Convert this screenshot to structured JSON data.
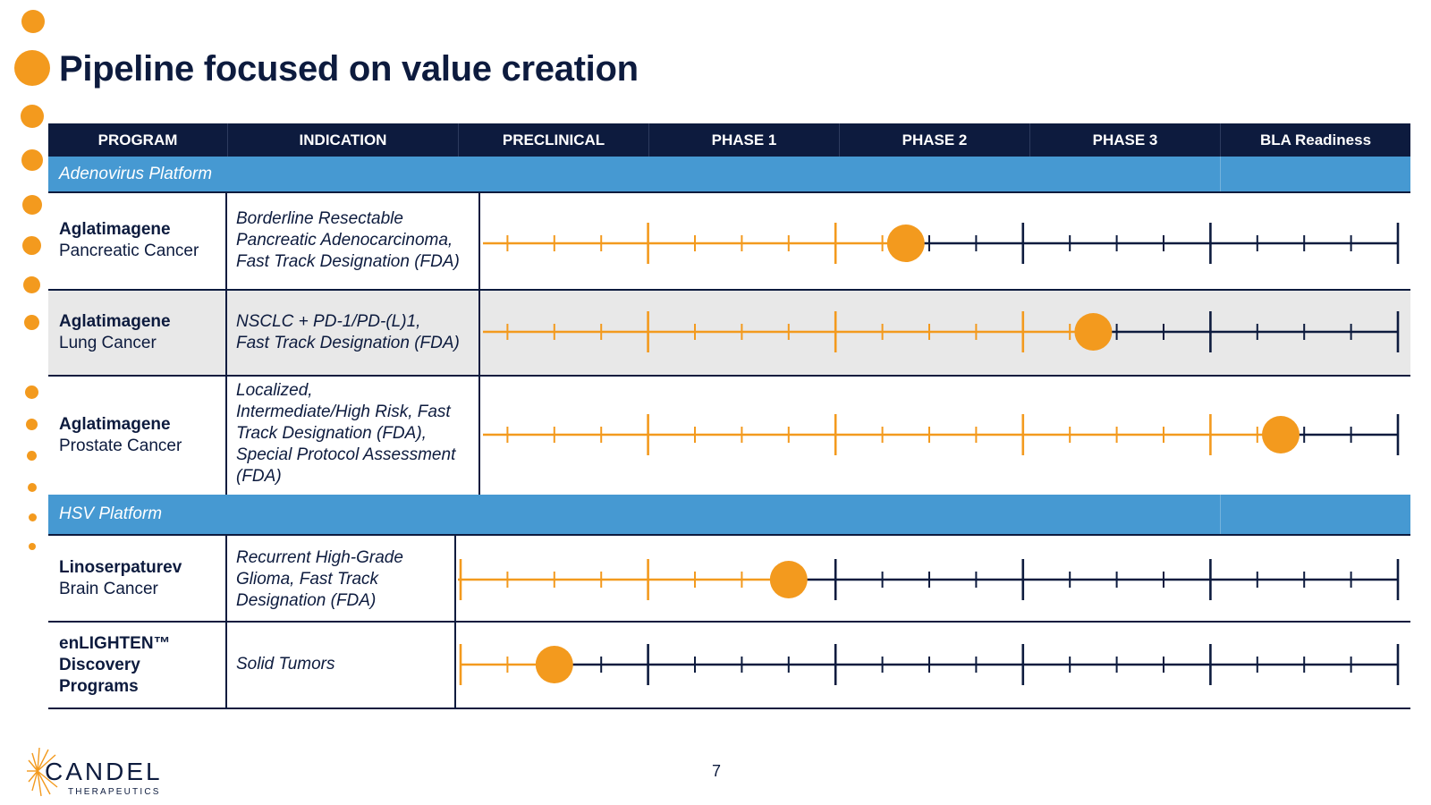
{
  "title": "Pipeline focused on value creation",
  "colors": {
    "navy": "#0d1b3e",
    "orange": "#f39a1e",
    "platform_blue": "#4699d2",
    "row_shade": "#e8e8e8"
  },
  "columns": [
    "PROGRAM",
    "INDICATION",
    "PRECLINICAL",
    "PHASE 1",
    "PHASE 2",
    "PHASE 3",
    "BLA Readiness"
  ],
  "platforms": [
    "Adenovirus Platform",
    "HSV Platform"
  ],
  "programs": [
    {
      "name": "Aglatimagene",
      "subtitle": "Pancreatic Cancer",
      "indication": [
        "Borderline Resectable",
        "Pancreatic Adenocarcinoma,",
        "Fast Track Designation (FDA)"
      ],
      "progress_units": 9.5
    },
    {
      "name": "Aglatimagene",
      "subtitle": "Lung Cancer",
      "indication": [
        "NSCLC + PD-1/PD-(L)1,",
        "Fast Track Designation (FDA)"
      ],
      "progress_units": 13.5
    },
    {
      "name": "Aglatimagene",
      "subtitle": "Prostate Cancer",
      "indication": [
        "Localized,",
        "Intermediate/High Risk, Fast",
        "Track Designation (FDA),",
        "Special Protocol Assessment",
        "(FDA)"
      ],
      "progress_units": 17.5
    },
    {
      "name": "Linoserpaturev",
      "subtitle": "Brain Cancer",
      "indication": [
        "Recurrent High-Grade",
        "Glioma, Fast Track",
        "Designation (FDA)"
      ],
      "progress_units": 7
    },
    {
      "name_lines": [
        "enLIGHTEN™",
        "Discovery",
        "Programs"
      ],
      "indication": [
        "Solid Tumors"
      ],
      "progress_units": 2
    }
  ],
  "company": {
    "name": "CANDEL",
    "tagline": "THERAPEUTICS"
  },
  "page_number": "7"
}
